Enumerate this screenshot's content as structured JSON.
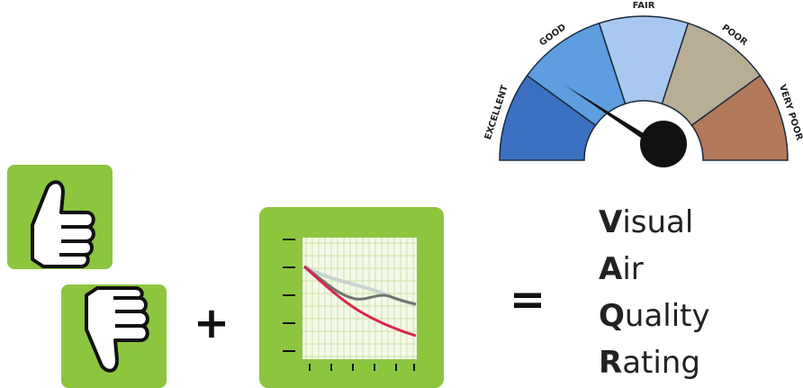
{
  "gauge": {
    "labels": [
      "EXCELLENT",
      "GOOD",
      "FAIR",
      "POOR",
      "VERY POOR"
    ]
  },
  "operators": {
    "plus": "+",
    "equals": "="
  },
  "acronym": [
    {
      "initial": "V",
      "rest": "isual"
    },
    {
      "initial": "A",
      "rest": "ir"
    },
    {
      "initial": "Q",
      "rest": "uality"
    },
    {
      "initial": "R",
      "rest": "ating"
    }
  ]
}
